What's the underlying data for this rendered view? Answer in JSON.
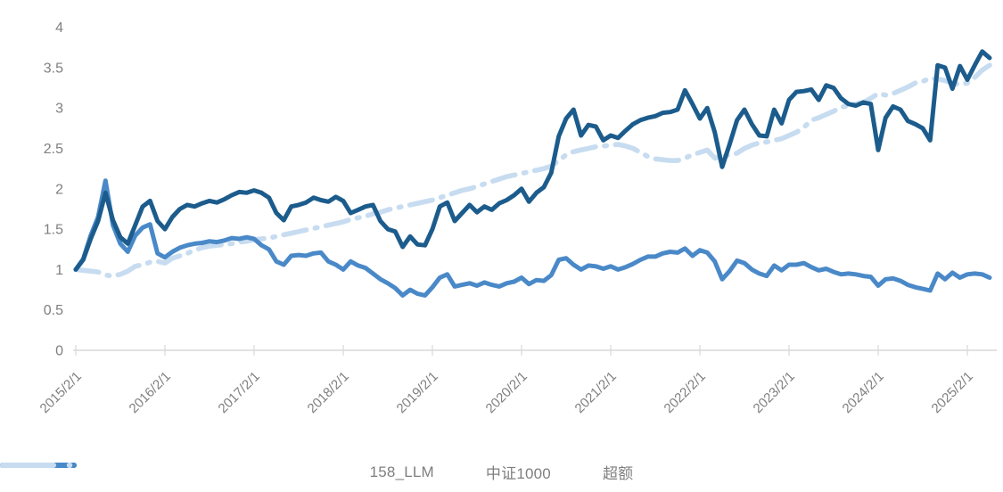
{
  "chart_data": {
    "type": "line",
    "title": "",
    "xlabel": "",
    "ylabel": "",
    "grid": false,
    "legend_position": "bottom",
    "x_axis": {
      "tick_labels": [
        "2015/2/1",
        "2016/2/1",
        "2017/2/1",
        "2018/2/1",
        "2019/2/1",
        "2020/2/1",
        "2021/2/1",
        "2022/2/1",
        "2023/2/1",
        "2024/2/1",
        "2025/2/1"
      ],
      "data_start": "2015/2",
      "data_end": "2025/5",
      "interval": "monthly"
    },
    "y_axis": {
      "tick_labels": [
        "0",
        "0.5",
        "1",
        "1.5",
        "2",
        "2.5",
        "3",
        "3.5",
        "4"
      ],
      "min": 0,
      "max": 4
    },
    "series": [
      {
        "name": "158_LLM",
        "color": "#1c5c8c",
        "style": "solid",
        "values": [
          1.0,
          1.12,
          1.38,
          1.6,
          1.95,
          1.61,
          1.4,
          1.32,
          1.55,
          1.78,
          1.85,
          1.6,
          1.5,
          1.65,
          1.75,
          1.8,
          1.78,
          1.82,
          1.85,
          1.83,
          1.87,
          1.92,
          1.96,
          1.95,
          1.98,
          1.95,
          1.89,
          1.7,
          1.61,
          1.78,
          1.8,
          1.83,
          1.89,
          1.86,
          1.84,
          1.9,
          1.85,
          1.7,
          1.74,
          1.78,
          1.8,
          1.6,
          1.5,
          1.47,
          1.28,
          1.41,
          1.31,
          1.3,
          1.5,
          1.78,
          1.83,
          1.6,
          1.7,
          1.8,
          1.71,
          1.78,
          1.74,
          1.82,
          1.86,
          1.92,
          2.0,
          1.84,
          1.95,
          2.02,
          2.2,
          2.65,
          2.87,
          2.98,
          2.66,
          2.79,
          2.77,
          2.6,
          2.66,
          2.63,
          2.72,
          2.8,
          2.85,
          2.88,
          2.9,
          2.94,
          2.95,
          2.98,
          3.22,
          3.05,
          2.87,
          3.0,
          2.7,
          2.27,
          2.55,
          2.85,
          2.98,
          2.8,
          2.66,
          2.65,
          2.98,
          2.81,
          3.1,
          3.2,
          3.21,
          3.23,
          3.1,
          3.28,
          3.25,
          3.12,
          3.05,
          3.03,
          3.07,
          3.05,
          2.48,
          2.88,
          3.02,
          2.98,
          2.84,
          2.8,
          2.75,
          2.6,
          3.53,
          3.5,
          3.24,
          3.52,
          3.35,
          3.53,
          3.7,
          3.62
        ]
      },
      {
        "name": "中证1000",
        "color": "#4a89c8",
        "style": "solid",
        "values": [
          1.0,
          1.13,
          1.42,
          1.65,
          2.1,
          1.55,
          1.32,
          1.22,
          1.42,
          1.52,
          1.56,
          1.2,
          1.15,
          1.22,
          1.27,
          1.3,
          1.32,
          1.33,
          1.35,
          1.34,
          1.36,
          1.39,
          1.38,
          1.4,
          1.38,
          1.3,
          1.25,
          1.1,
          1.06,
          1.17,
          1.18,
          1.17,
          1.2,
          1.21,
          1.1,
          1.06,
          1.0,
          1.1,
          1.05,
          1.02,
          0.95,
          0.88,
          0.83,
          0.77,
          0.68,
          0.75,
          0.7,
          0.68,
          0.78,
          0.9,
          0.94,
          0.79,
          0.81,
          0.83,
          0.8,
          0.84,
          0.81,
          0.79,
          0.83,
          0.85,
          0.9,
          0.82,
          0.87,
          0.86,
          0.93,
          1.12,
          1.14,
          1.06,
          1.0,
          1.05,
          1.04,
          1.01,
          1.04,
          1.0,
          1.03,
          1.07,
          1.12,
          1.16,
          1.16,
          1.2,
          1.22,
          1.21,
          1.26,
          1.17,
          1.24,
          1.21,
          1.1,
          0.88,
          0.98,
          1.11,
          1.08,
          1.0,
          0.95,
          0.92,
          1.05,
          0.99,
          1.06,
          1.06,
          1.08,
          1.03,
          0.99,
          1.01,
          0.97,
          0.94,
          0.95,
          0.94,
          0.92,
          0.91,
          0.8,
          0.88,
          0.89,
          0.86,
          0.81,
          0.78,
          0.76,
          0.74,
          0.95,
          0.88,
          0.96,
          0.9,
          0.94,
          0.95,
          0.94,
          0.9
        ]
      },
      {
        "name": "超额",
        "color": "#c7dcf0",
        "style": "long-dash-dot",
        "values": [
          1.0,
          0.99,
          0.98,
          0.97,
          0.93,
          0.92,
          0.94,
          0.98,
          1.04,
          1.06,
          1.09,
          1.1,
          1.08,
          1.14,
          1.17,
          1.2,
          1.24,
          1.27,
          1.29,
          1.3,
          1.31,
          1.32,
          1.34,
          1.35,
          1.37,
          1.38,
          1.39,
          1.41,
          1.43,
          1.45,
          1.47,
          1.49,
          1.51,
          1.53,
          1.55,
          1.57,
          1.59,
          1.62,
          1.64,
          1.66,
          1.69,
          1.71,
          1.74,
          1.76,
          1.78,
          1.8,
          1.82,
          1.84,
          1.86,
          1.89,
          1.92,
          1.95,
          1.98,
          2.0,
          2.03,
          2.06,
          2.09,
          2.12,
          2.15,
          2.17,
          2.19,
          2.21,
          2.23,
          2.25,
          2.28,
          2.35,
          2.42,
          2.46,
          2.48,
          2.5,
          2.52,
          2.53,
          2.54,
          2.55,
          2.53,
          2.5,
          2.45,
          2.4,
          2.37,
          2.36,
          2.35,
          2.35,
          2.38,
          2.42,
          2.45,
          2.48,
          2.38,
          2.4,
          2.42,
          2.44,
          2.5,
          2.54,
          2.57,
          2.58,
          2.6,
          2.62,
          2.66,
          2.7,
          2.76,
          2.85,
          2.88,
          2.92,
          2.96,
          3.01,
          3.03,
          3.05,
          3.07,
          3.12,
          3.18,
          3.16,
          3.18,
          3.22,
          3.26,
          3.31,
          3.33,
          3.37,
          3.36,
          3.34,
          3.31,
          3.29,
          3.31,
          3.38,
          3.47,
          3.53
        ]
      }
    ]
  },
  "colors": {
    "axis_line": "#d9d9d9",
    "tick_mark": "#d9d9d9",
    "label_text": "#7f7f7f",
    "background": "#ffffff"
  }
}
